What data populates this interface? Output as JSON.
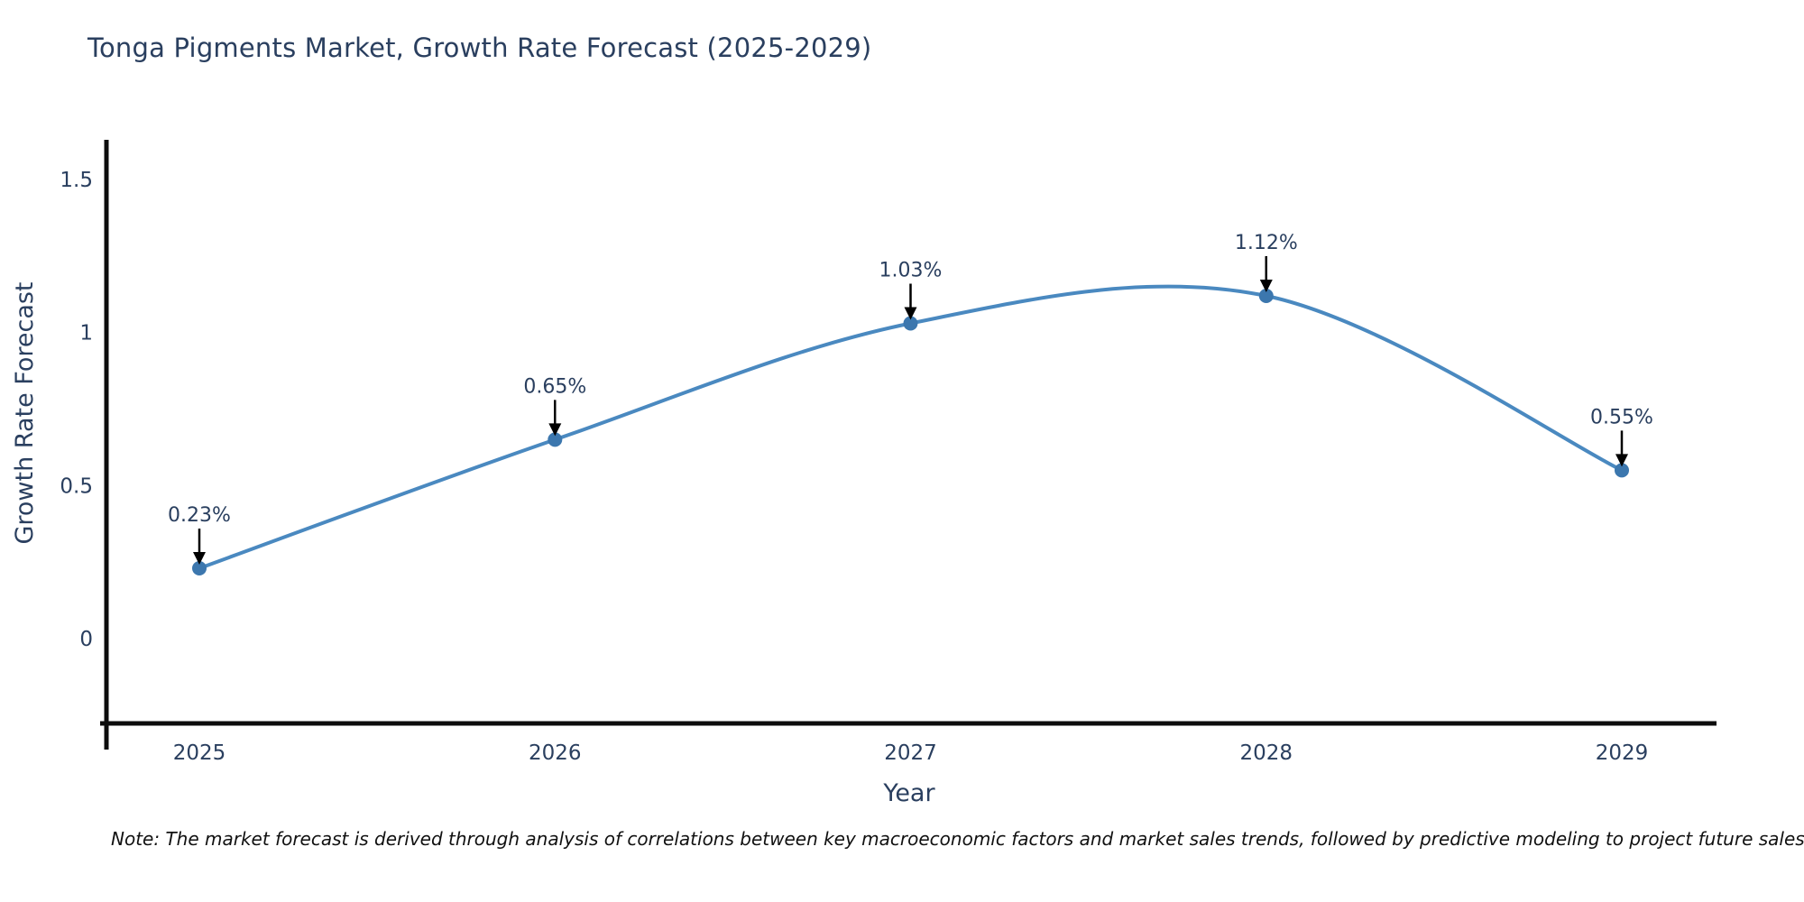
{
  "chart_data": {
    "type": "line",
    "title": "Tonga Pigments Market, Growth Rate Forecast (2025-2029)",
    "xlabel": "Year",
    "ylabel": "Growth Rate Forecast",
    "x": [
      2025,
      2026,
      2027,
      2028,
      2029
    ],
    "x_tick_labels": [
      "2025",
      "2026",
      "2027",
      "2028",
      "2029"
    ],
    "values": [
      0.23,
      0.65,
      1.03,
      1.12,
      0.55
    ],
    "point_labels": [
      "0.23%",
      "0.65%",
      "1.03%",
      "1.12%",
      "0.55%"
    ],
    "y_ticks": [
      0,
      0.5,
      1,
      1.5
    ],
    "y_tick_labels": [
      "0",
      "0.5",
      "1",
      "1.5"
    ],
    "ylim": [
      -0.28,
      1.9
    ],
    "xlim": [
      2024.73,
      2029.27
    ],
    "grid": false,
    "legend": null,
    "curve": "spline",
    "line_color": "#4a89c0",
    "marker_color": "#3c77ae",
    "arrow_color": "#000000"
  },
  "note": {
    "text": "Note: The market forecast is derived through analysis of correlations between key macroeconomic factors and market sales trends, followed by predictive modeling to project future sales"
  }
}
